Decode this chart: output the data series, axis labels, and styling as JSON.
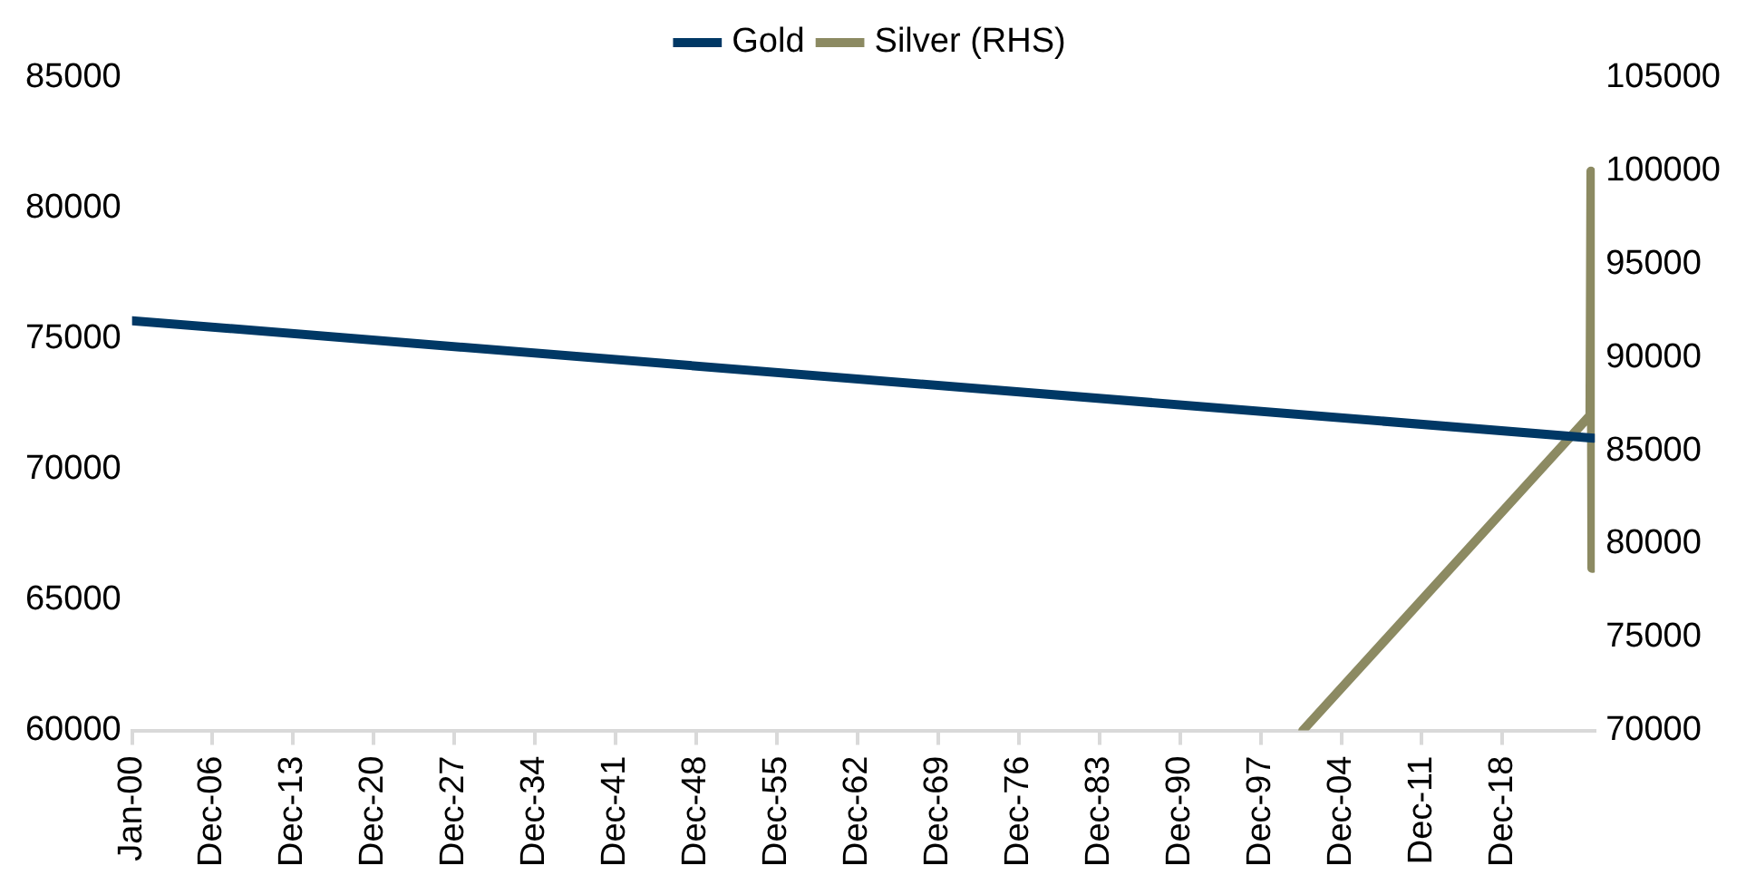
{
  "chart_data": {
    "type": "line",
    "x": [
      "1900-01",
      "2026-11"
    ],
    "series": [
      {
        "name": "Gold",
        "color": "#003865",
        "values": [
          75700,
          71200
        ]
      },
      {
        "name": "Silver (RHS)",
        "color": "#8c8a62",
        "axis": "y2",
        "x": [
          "2001-08",
          "2026-07",
          "2026-08",
          "2026-09",
          "2026-10",
          "2026-11"
        ],
        "values": [
          70000,
          86900,
          100000,
          78700,
          94500,
          81000
        ]
      }
    ],
    "xlim": [
      "1900-01",
      "2026-12"
    ],
    "xticks": [
      {
        "value": "1900-01",
        "label": "Jan-00"
      },
      {
        "value": "1906-12",
        "label": "Dec-06"
      },
      {
        "value": "1913-12",
        "label": "Dec-13"
      },
      {
        "value": "1920-12",
        "label": "Dec-20"
      },
      {
        "value": "1927-12",
        "label": "Dec-27"
      },
      {
        "value": "1934-12",
        "label": "Dec-34"
      },
      {
        "value": "1941-12",
        "label": "Dec-41"
      },
      {
        "value": "1948-12",
        "label": "Dec-48"
      },
      {
        "value": "1955-12",
        "label": "Dec-55"
      },
      {
        "value": "1962-12",
        "label": "Dec-62"
      },
      {
        "value": "1969-12",
        "label": "Dec-69"
      },
      {
        "value": "1976-12",
        "label": "Dec-76"
      },
      {
        "value": "1983-12",
        "label": "Dec-83"
      },
      {
        "value": "1990-12",
        "label": "Dec-90"
      },
      {
        "value": "1997-12",
        "label": "Dec-97"
      },
      {
        "value": "2004-12",
        "label": "Dec-04"
      },
      {
        "value": "2011-12",
        "label": "Dec-11"
      },
      {
        "value": "2018-12",
        "label": "Dec-18"
      }
    ],
    "ylim": [
      60000,
      85000
    ],
    "yticks": [
      60000,
      65000,
      70000,
      75000,
      80000,
      85000
    ],
    "y2lim": [
      70000,
      105000
    ],
    "y2ticks": [
      70000,
      75000,
      80000,
      85000,
      90000,
      95000,
      100000,
      105000
    ],
    "grid": false,
    "legend": "top",
    "marker": "none",
    "line_style": "solid"
  }
}
